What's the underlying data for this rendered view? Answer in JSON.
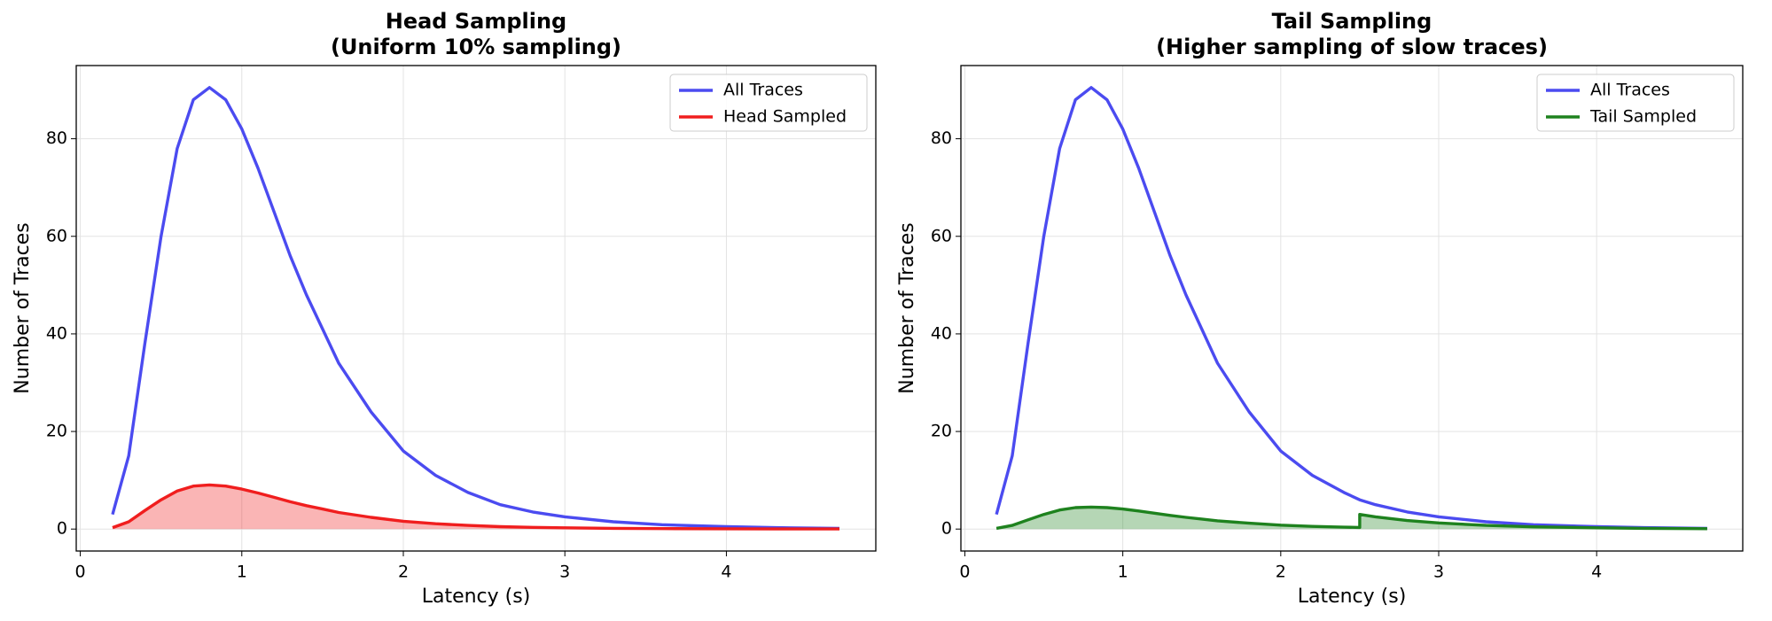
{
  "chart_data": [
    {
      "type": "line",
      "title": [
        "Head Sampling",
        "(Uniform 10% sampling)"
      ],
      "x_label": "Latency (s)",
      "y_label": "Number of Traces",
      "x": [
        0.2,
        0.3,
        0.4,
        0.5,
        0.6,
        0.7,
        0.8,
        0.9,
        1.0,
        1.1,
        1.2,
        1.3,
        1.4,
        1.5,
        1.6,
        1.8,
        2.0,
        2.2,
        2.4,
        2.6,
        2.8,
        3.0,
        3.3,
        3.6,
        4.0,
        4.3,
        4.7
      ],
      "series": [
        {
          "name": "All Traces",
          "color": "#4b4bf0",
          "fill": false,
          "values": [
            3,
            15,
            38,
            60,
            78,
            88,
            90.5,
            88,
            82,
            74,
            65,
            56,
            48,
            41,
            34,
            24,
            16,
            11,
            7.5,
            5,
            3.5,
            2.5,
            1.5,
            0.9,
            0.5,
            0.3,
            0.15
          ]
        },
        {
          "name": "Head Sampled",
          "color": "#f01e1e",
          "fill": true,
          "values": [
            0.3,
            1.5,
            3.8,
            6,
            7.8,
            8.8,
            9.05,
            8.8,
            8.2,
            7.4,
            6.5,
            5.6,
            4.8,
            4.1,
            3.4,
            2.4,
            1.6,
            1.1,
            0.75,
            0.5,
            0.35,
            0.25,
            0.15,
            0.09,
            0.05,
            0.03,
            0.015
          ]
        }
      ],
      "xlim": [
        -0.025,
        4.925
      ],
      "ylim": [
        -4.5,
        95
      ],
      "xticks": [
        0,
        1,
        2,
        3,
        4
      ],
      "yticks": [
        0,
        20,
        40,
        60,
        80
      ],
      "grid": true,
      "legend": "upper right"
    },
    {
      "type": "line",
      "title": [
        "Tail Sampling",
        "(Higher sampling of slow traces)"
      ],
      "x_label": "Latency (s)",
      "y_label": "Number of Traces",
      "x": [
        0.2,
        0.3,
        0.4,
        0.5,
        0.6,
        0.7,
        0.8,
        0.9,
        1.0,
        1.1,
        1.2,
        1.3,
        1.4,
        1.5,
        1.6,
        1.8,
        2.0,
        2.2,
        2.4,
        2.5,
        2.5,
        2.6,
        2.8,
        3.0,
        3.3,
        3.6,
        4.0,
        4.3,
        4.7
      ],
      "series": [
        {
          "name": "All Traces",
          "color": "#4b4bf0",
          "fill": false,
          "values": [
            3,
            15,
            38,
            60,
            78,
            88,
            90.5,
            88,
            82,
            74,
            65,
            56,
            48,
            41,
            34,
            24,
            16,
            11,
            7.5,
            6,
            6,
            5,
            3.5,
            2.5,
            1.5,
            0.9,
            0.5,
            0.3,
            0.15
          ]
        },
        {
          "name": "Tail Sampled",
          "color": "#1e821e",
          "fill": true,
          "values": [
            0.15,
            0.75,
            1.9,
            3,
            3.9,
            4.4,
            4.5,
            4.4,
            4.1,
            3.7,
            3.25,
            2.8,
            2.4,
            2.05,
            1.7,
            1.2,
            0.8,
            0.55,
            0.38,
            0.33,
            3,
            2.5,
            1.75,
            1.25,
            0.75,
            0.45,
            0.25,
            0.15,
            0.08
          ]
        }
      ],
      "xlim": [
        -0.025,
        4.925
      ],
      "ylim": [
        -4.5,
        95
      ],
      "xticks": [
        0,
        1,
        2,
        3,
        4
      ],
      "yticks": [
        0,
        20,
        40,
        60,
        80
      ],
      "grid": true,
      "legend": "upper right"
    }
  ]
}
